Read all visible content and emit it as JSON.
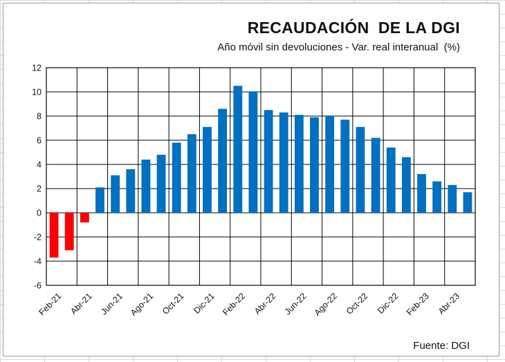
{
  "chart_data": {
    "type": "bar",
    "title": "RECAUDACIÓN  DE LA DGI",
    "subtitle": "Año móvil sin devoluciones - Var. real interanual  (%)",
    "source": "Fuente: DGI",
    "ylim": [
      -6,
      12
    ],
    "yticks": [
      -6,
      -4,
      -2,
      0,
      2,
      4,
      6,
      8,
      10,
      12
    ],
    "grid": true,
    "categories": [
      "Feb-21",
      "Mar-21",
      "Abr-21",
      "May-21",
      "Jun-21",
      "Jul-21",
      "Ago-21",
      "Sep-21",
      "Oct-21",
      "Nov-21",
      "Dic-21",
      "Ene-22",
      "Feb-22",
      "Mar-22",
      "Abr-22",
      "May-22",
      "Jun-22",
      "Jul-22",
      "Ago-22",
      "Sep-22",
      "Oct-22",
      "Nov-22",
      "Dic-22",
      "Ene-23",
      "Feb-23",
      "Mar-23",
      "Abr-23",
      "May-23"
    ],
    "tick_labels": [
      "Feb-21",
      "",
      "Abr-21",
      "",
      "Jun-21",
      "",
      "Ago-21",
      "",
      "Oct-21",
      "",
      "Dic-21",
      "",
      "Feb-22",
      "",
      "Abr-22",
      "",
      "Jun-22",
      "",
      "Ago-22",
      "",
      "Oct-22",
      "",
      "Dic-22",
      "",
      "Feb-23",
      "",
      "Abr-23",
      ""
    ],
    "values": [
      -3.7,
      -3.1,
      -0.8,
      2.1,
      3.1,
      3.6,
      4.4,
      4.8,
      5.8,
      6.5,
      7.1,
      8.6,
      10.5,
      10.0,
      8.5,
      8.3,
      8.1,
      7.9,
      8.0,
      7.7,
      7.1,
      6.2,
      5.4,
      4.6,
      3.2,
      2.6,
      2.3,
      1.7
    ],
    "colors": {
      "positive": "#0070c0",
      "negative": "#ff0000"
    }
  }
}
